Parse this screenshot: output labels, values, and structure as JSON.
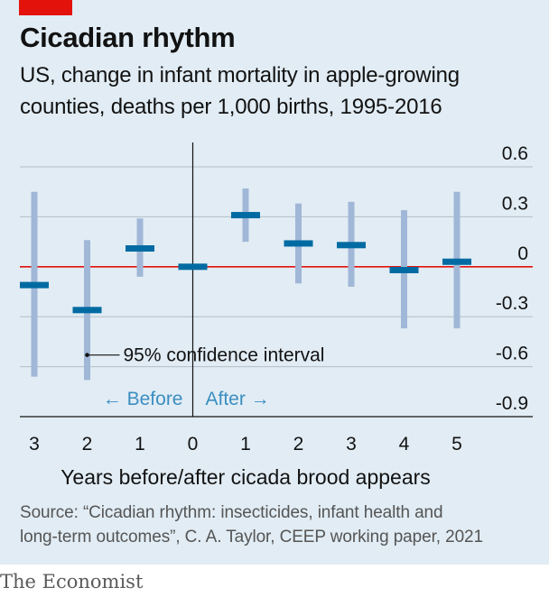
{
  "header": {
    "title": "Cicadian rhythm",
    "subtitle_line1": "US, change in infant mortality in apple-growing",
    "subtitle_line2": "counties, deaths per 1,000 births, 1995-2016"
  },
  "footer": {
    "source_line1": "Source: “Cicadian rhythm: insecticides, infant health and",
    "source_line2": "long-term outcomes”, C. A. Taylor, CEEP working paper, 2021",
    "brand": "The Economist"
  },
  "colors": {
    "background": "#e1ecf4",
    "interval": "#a0b7d7",
    "estimate": "#006ba2",
    "zero_line": "#e3120b",
    "accent_tag": "#e3120b",
    "annotation": "#3b8ec1"
  },
  "chart_data": {
    "type": "errorbar",
    "xlabel": "Years before/after cicada brood appears",
    "ylabel": "",
    "ylim": [
      -0.9,
      0.6
    ],
    "yticks": [
      "0.6",
      "0.3",
      "0",
      "-0.3",
      "-0.6",
      "-0.9"
    ],
    "grid": true,
    "y_axis_side": "right",
    "categories": [
      "3",
      "2",
      "1",
      "0",
      "1",
      "2",
      "3",
      "4",
      "5"
    ],
    "period": [
      "before",
      "before",
      "before",
      "reference",
      "after",
      "after",
      "after",
      "after",
      "after"
    ],
    "estimates": [
      -0.11,
      -0.26,
      0.11,
      0.0,
      0.31,
      0.14,
      0.13,
      -0.02,
      0.03
    ],
    "ci_low": [
      -0.66,
      -0.68,
      -0.06,
      0.0,
      0.15,
      -0.1,
      -0.12,
      -0.37,
      -0.37
    ],
    "ci_high": [
      0.45,
      0.16,
      0.29,
      0.0,
      0.47,
      0.38,
      0.39,
      0.34,
      0.45
    ],
    "annotations": {
      "ci_label": "95% confidence interval",
      "before_label": "← Before",
      "after_label": "After →"
    }
  }
}
